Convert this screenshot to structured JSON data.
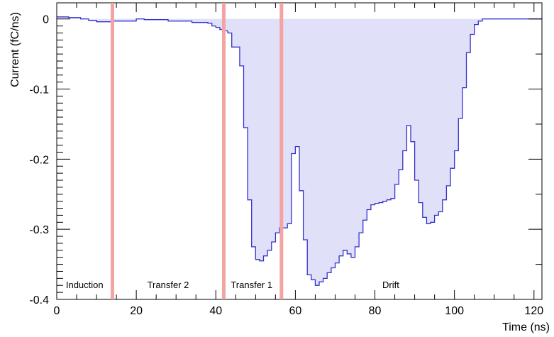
{
  "chart_data": {
    "type": "area",
    "xlabel": "Time (ns)",
    "ylabel": "Current (fC/ns)",
    "xlim": [
      0,
      122
    ],
    "ylim": [
      -0.4,
      0.023
    ],
    "x_ticks": [
      0,
      20,
      40,
      60,
      80,
      100,
      120
    ],
    "x_tick_labels": [
      "0",
      "20",
      "40",
      "60",
      "80",
      "100",
      "120"
    ],
    "y_ticks": [
      0,
      -0.1,
      -0.2,
      -0.3,
      -0.4
    ],
    "y_tick_labels": [
      "0",
      "-0.1",
      "-0.2",
      "-0.3",
      "-0.4"
    ],
    "grid": false,
    "line_color": "#3333cc",
    "fill_color": "#e0e0f8",
    "marker_color": "#f4a3a3",
    "region_markers_x": [
      14,
      42,
      56.5
    ],
    "region_labels": [
      {
        "text": "Induction",
        "x": 7
      },
      {
        "text": "Transfer 2",
        "x": 28
      },
      {
        "text": "Transfer 1",
        "x": 49
      },
      {
        "text": "Drift",
        "x": 84
      }
    ],
    "series": [
      {
        "x": [
          0,
          3,
          6,
          8,
          10,
          14,
          20,
          22,
          28,
          34,
          38,
          39,
          40,
          41,
          42,
          43,
          44,
          46,
          47,
          48,
          49,
          50,
          51,
          52,
          53,
          54,
          55,
          56,
          57,
          58,
          59,
          60,
          61,
          62,
          63,
          64,
          65,
          66,
          67,
          68,
          69,
          70,
          71,
          72,
          73,
          74,
          75,
          76,
          77,
          78,
          79,
          80,
          81,
          82,
          83,
          84,
          85,
          86,
          87,
          88,
          89,
          90,
          91,
          92,
          93,
          94,
          95,
          96,
          97,
          98,
          99,
          100,
          101,
          102,
          103,
          104,
          105,
          106,
          107,
          108,
          110,
          122
        ],
        "y": [
          0.003,
          0.002,
          0.0,
          -0.002,
          -0.004,
          -0.003,
          0.0,
          -0.001,
          -0.003,
          -0.005,
          -0.006,
          -0.01,
          -0.012,
          -0.015,
          -0.017,
          -0.02,
          -0.04,
          -0.067,
          -0.155,
          -0.258,
          -0.325,
          -0.343,
          -0.345,
          -0.338,
          -0.33,
          -0.318,
          -0.305,
          -0.298,
          -0.298,
          -0.292,
          -0.192,
          -0.182,
          -0.245,
          -0.315,
          -0.365,
          -0.372,
          -0.38,
          -0.375,
          -0.37,
          -0.362,
          -0.355,
          -0.348,
          -0.338,
          -0.33,
          -0.335,
          -0.34,
          -0.325,
          -0.305,
          -0.287,
          -0.272,
          -0.265,
          -0.263,
          -0.262,
          -0.26,
          -0.258,
          -0.256,
          -0.236,
          -0.215,
          -0.188,
          -0.152,
          -0.175,
          -0.23,
          -0.262,
          -0.283,
          -0.292,
          -0.29,
          -0.28,
          -0.275,
          -0.258,
          -0.238,
          -0.213,
          -0.188,
          -0.142,
          -0.098,
          -0.048,
          -0.022,
          -0.008,
          -0.003,
          0.0,
          0.0,
          0.0,
          0.0
        ]
      }
    ]
  }
}
